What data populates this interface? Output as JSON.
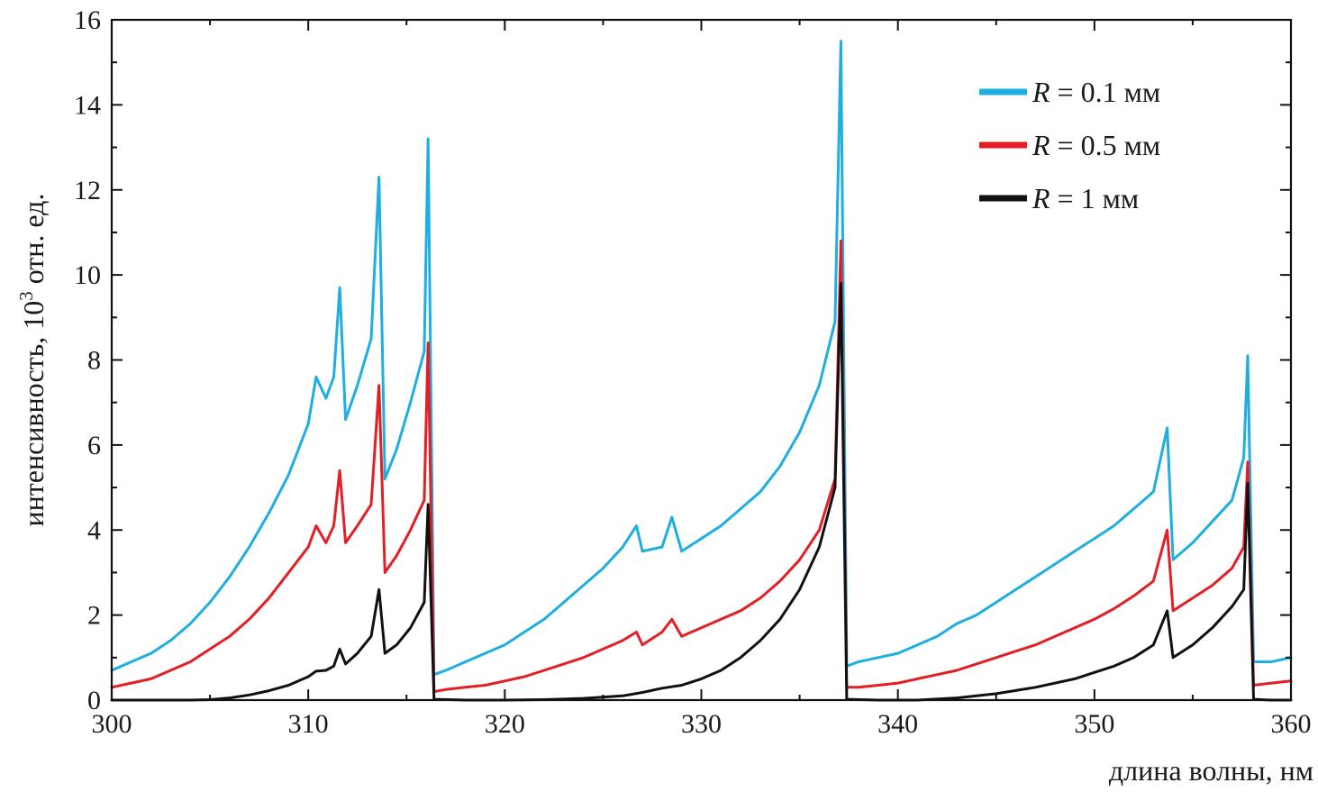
{
  "chart_data": {
    "type": "line",
    "title": "",
    "xlabel": "длина волны, нм",
    "ylabel_main": "интенсивность, 10",
    "ylabel_sup": "3",
    "ylabel_tail": " отн. ед.",
    "xlim": [
      300,
      360
    ],
    "ylim": [
      0,
      16
    ],
    "xticks": [
      300,
      310,
      320,
      330,
      340,
      350,
      360
    ],
    "yticks": [
      0,
      2,
      4,
      6,
      8,
      10,
      12,
      14,
      16
    ],
    "grid": false,
    "legend_position": "top-right",
    "series": [
      {
        "name_var": "R",
        "name_rest": " = 0.1 мм",
        "color": "#1eaee0",
        "points": [
          [
            300,
            0.7
          ],
          [
            301,
            0.9
          ],
          [
            302,
            1.1
          ],
          [
            303,
            1.4
          ],
          [
            304,
            1.8
          ],
          [
            305,
            2.3
          ],
          [
            306,
            2.9
          ],
          [
            307,
            3.6
          ],
          [
            308,
            4.4
          ],
          [
            309,
            5.3
          ],
          [
            310,
            6.5
          ],
          [
            310.4,
            7.6
          ],
          [
            310.9,
            7.1
          ],
          [
            311.3,
            7.6
          ],
          [
            311.6,
            9.7
          ],
          [
            311.9,
            6.6
          ],
          [
            312.5,
            7.4
          ],
          [
            313.2,
            8.5
          ],
          [
            313.6,
            12.3
          ],
          [
            313.9,
            5.2
          ],
          [
            314.5,
            5.9
          ],
          [
            315.2,
            7.0
          ],
          [
            315.9,
            8.2
          ],
          [
            316.1,
            13.2
          ],
          [
            316.4,
            0.6
          ],
          [
            317,
            0.7
          ],
          [
            318,
            0.9
          ],
          [
            319,
            1.1
          ],
          [
            320,
            1.3
          ],
          [
            321,
            1.6
          ],
          [
            322,
            1.9
          ],
          [
            323,
            2.3
          ],
          [
            324,
            2.7
          ],
          [
            325,
            3.1
          ],
          [
            326,
            3.6
          ],
          [
            326.7,
            4.1
          ],
          [
            327,
            3.5
          ],
          [
            328,
            3.6
          ],
          [
            328.5,
            4.3
          ],
          [
            329,
            3.5
          ],
          [
            330,
            3.8
          ],
          [
            331,
            4.1
          ],
          [
            332,
            4.5
          ],
          [
            333,
            4.9
          ],
          [
            334,
            5.5
          ],
          [
            335,
            6.3
          ],
          [
            336,
            7.4
          ],
          [
            336.8,
            8.9
          ],
          [
            337.1,
            15.5
          ],
          [
            337.4,
            0.8
          ],
          [
            338,
            0.9
          ],
          [
            339,
            1.0
          ],
          [
            340,
            1.1
          ],
          [
            341,
            1.3
          ],
          [
            342,
            1.5
          ],
          [
            343,
            1.8
          ],
          [
            344,
            2.0
          ],
          [
            345,
            2.3
          ],
          [
            346,
            2.6
          ],
          [
            347,
            2.9
          ],
          [
            348,
            3.2
          ],
          [
            349,
            3.5
          ],
          [
            350,
            3.8
          ],
          [
            351,
            4.1
          ],
          [
            352,
            4.5
          ],
          [
            353,
            4.9
          ],
          [
            353.7,
            6.4
          ],
          [
            354,
            3.3
          ],
          [
            355,
            3.7
          ],
          [
            356,
            4.2
          ],
          [
            357,
            4.7
          ],
          [
            357.6,
            5.7
          ],
          [
            357.8,
            8.1
          ],
          [
            358.1,
            0.9
          ],
          [
            359,
            0.9
          ],
          [
            360,
            1.0
          ]
        ]
      },
      {
        "name_var": "R",
        "name_rest": " = 0.5 мм",
        "color": "#e31e24",
        "points": [
          [
            300,
            0.3
          ],
          [
            301,
            0.4
          ],
          [
            302,
            0.5
          ],
          [
            303,
            0.7
          ],
          [
            304,
            0.9
          ],
          [
            305,
            1.2
          ],
          [
            306,
            1.5
          ],
          [
            307,
            1.9
          ],
          [
            308,
            2.4
          ],
          [
            309,
            3.0
          ],
          [
            310,
            3.6
          ],
          [
            310.4,
            4.1
          ],
          [
            310.9,
            3.7
          ],
          [
            311.3,
            4.1
          ],
          [
            311.6,
            5.4
          ],
          [
            311.9,
            3.7
          ],
          [
            312.5,
            4.1
          ],
          [
            313.2,
            4.6
          ],
          [
            313.6,
            7.4
          ],
          [
            313.9,
            3.0
          ],
          [
            314.5,
            3.4
          ],
          [
            315.2,
            4.0
          ],
          [
            315.9,
            4.7
          ],
          [
            316.1,
            8.4
          ],
          [
            316.4,
            0.2
          ],
          [
            317,
            0.25
          ],
          [
            318,
            0.3
          ],
          [
            319,
            0.35
          ],
          [
            320,
            0.45
          ],
          [
            321,
            0.55
          ],
          [
            322,
            0.7
          ],
          [
            323,
            0.85
          ],
          [
            324,
            1.0
          ],
          [
            325,
            1.2
          ],
          [
            326,
            1.4
          ],
          [
            326.7,
            1.6
          ],
          [
            327,
            1.3
          ],
          [
            328,
            1.6
          ],
          [
            328.5,
            1.9
          ],
          [
            329,
            1.5
          ],
          [
            330,
            1.7
          ],
          [
            331,
            1.9
          ],
          [
            332,
            2.1
          ],
          [
            333,
            2.4
          ],
          [
            334,
            2.8
          ],
          [
            335,
            3.3
          ],
          [
            336,
            4.0
          ],
          [
            336.8,
            5.2
          ],
          [
            337.1,
            10.8
          ],
          [
            337.4,
            0.3
          ],
          [
            338,
            0.3
          ],
          [
            339,
            0.35
          ],
          [
            340,
            0.4
          ],
          [
            341,
            0.5
          ],
          [
            342,
            0.6
          ],
          [
            343,
            0.7
          ],
          [
            344,
            0.85
          ],
          [
            345,
            1.0
          ],
          [
            346,
            1.15
          ],
          [
            347,
            1.3
          ],
          [
            348,
            1.5
          ],
          [
            349,
            1.7
          ],
          [
            350,
            1.9
          ],
          [
            351,
            2.15
          ],
          [
            352,
            2.45
          ],
          [
            353,
            2.8
          ],
          [
            353.7,
            4.0
          ],
          [
            354,
            2.1
          ],
          [
            355,
            2.4
          ],
          [
            356,
            2.7
          ],
          [
            357,
            3.1
          ],
          [
            357.6,
            3.6
          ],
          [
            357.8,
            5.6
          ],
          [
            358.1,
            0.35
          ],
          [
            359,
            0.4
          ],
          [
            360,
            0.45
          ]
        ]
      },
      {
        "name_var": "R",
        "name_rest": " = 1 мм",
        "color": "#111111",
        "points": [
          [
            300,
            0
          ],
          [
            302,
            0
          ],
          [
            304,
            0
          ],
          [
            305,
            0.01
          ],
          [
            306,
            0.05
          ],
          [
            307,
            0.12
          ],
          [
            308,
            0.22
          ],
          [
            309,
            0.35
          ],
          [
            310,
            0.55
          ],
          [
            310.4,
            0.68
          ],
          [
            310.9,
            0.7
          ],
          [
            311.3,
            0.8
          ],
          [
            311.6,
            1.2
          ],
          [
            311.9,
            0.85
          ],
          [
            312.5,
            1.1
          ],
          [
            313.2,
            1.5
          ],
          [
            313.6,
            2.6
          ],
          [
            313.9,
            1.1
          ],
          [
            314.5,
            1.3
          ],
          [
            315.2,
            1.7
          ],
          [
            315.9,
            2.3
          ],
          [
            316.1,
            4.6
          ],
          [
            316.4,
            0.02
          ],
          [
            318,
            0
          ],
          [
            320,
            0
          ],
          [
            322,
            0.01
          ],
          [
            324,
            0.04
          ],
          [
            326,
            0.1
          ],
          [
            327,
            0.18
          ],
          [
            328,
            0.28
          ],
          [
            329,
            0.35
          ],
          [
            330,
            0.5
          ],
          [
            331,
            0.7
          ],
          [
            332,
            1.0
          ],
          [
            333,
            1.4
          ],
          [
            334,
            1.9
          ],
          [
            335,
            2.6
          ],
          [
            336,
            3.6
          ],
          [
            336.8,
            5.0
          ],
          [
            337.1,
            9.8
          ],
          [
            337.4,
            0.02
          ],
          [
            339,
            0
          ],
          [
            341,
            0
          ],
          [
            343,
            0.05
          ],
          [
            345,
            0.15
          ],
          [
            347,
            0.3
          ],
          [
            349,
            0.5
          ],
          [
            350,
            0.65
          ],
          [
            351,
            0.8
          ],
          [
            352,
            1.0
          ],
          [
            353,
            1.3
          ],
          [
            353.7,
            2.1
          ],
          [
            354,
            1.0
          ],
          [
            355,
            1.3
          ],
          [
            356,
            1.7
          ],
          [
            357,
            2.2
          ],
          [
            357.6,
            2.6
          ],
          [
            357.8,
            5.1
          ],
          [
            358.1,
            0.02
          ],
          [
            359,
            0
          ],
          [
            360,
            0
          ]
        ]
      }
    ]
  }
}
